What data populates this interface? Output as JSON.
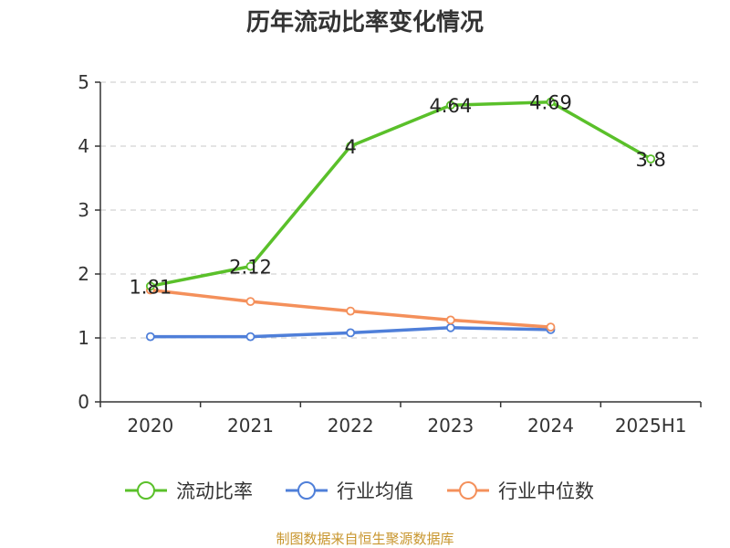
{
  "chart_data": {
    "type": "line",
    "title": "历年流动比率变化情况",
    "xlabel": "",
    "ylabel": "",
    "categories": [
      "2020",
      "2021",
      "2022",
      "2023",
      "2024",
      "2025H1"
    ],
    "ylim": [
      0,
      5
    ],
    "yticks": [
      0,
      1,
      2,
      3,
      4,
      5
    ],
    "grid": true,
    "legend_position": "bottom",
    "series": [
      {
        "name": "流动比率",
        "color": "#5ac02a",
        "values": [
          1.81,
          2.12,
          4,
          4.64,
          4.69,
          3.8
        ],
        "labels": [
          "1.81",
          "2.12",
          "4",
          "4.64",
          "4.69",
          "3.8"
        ]
      },
      {
        "name": "行业均值",
        "color": "#4f7fd9",
        "values": [
          1.02,
          1.02,
          1.08,
          1.16,
          1.13,
          null
        ]
      },
      {
        "name": "行业中位数",
        "color": "#f4905b",
        "values": [
          1.75,
          1.57,
          1.42,
          1.28,
          1.17,
          null
        ]
      }
    ]
  },
  "footer": {
    "source": "制图数据来自恒生聚源数据库"
  }
}
